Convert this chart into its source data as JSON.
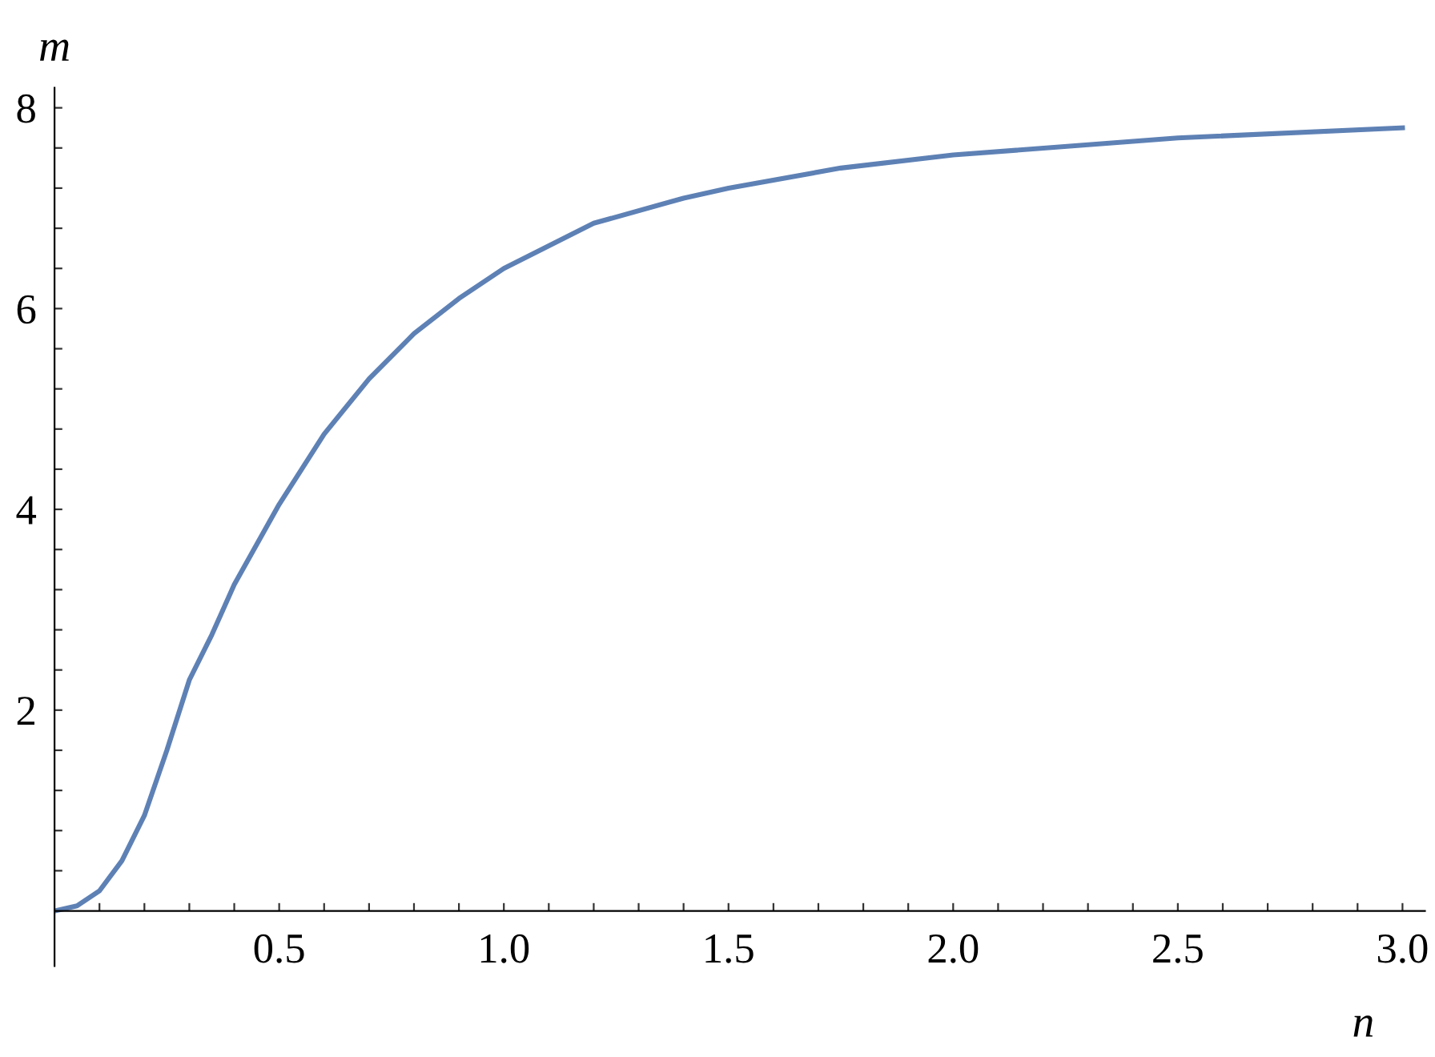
{
  "chart_data": {
    "type": "line",
    "xlabel": "n",
    "ylabel": "m",
    "x": [
      0,
      0.05,
      0.1,
      0.15,
      0.2,
      0.25,
      0.3,
      0.35,
      0.4,
      0.5,
      0.6,
      0.7,
      0.8,
      0.9,
      1.0,
      1.2,
      1.4,
      1.5,
      1.75,
      2.0,
      2.5,
      3.0
    ],
    "series": [
      {
        "color": "#5e81b5",
        "values": [
          0,
          0.05,
          0.2,
          0.5,
          0.95,
          1.6,
          2.3,
          2.75,
          3.25,
          4.05,
          4.75,
          5.3,
          5.75,
          6.1,
          6.4,
          6.85,
          7.1,
          7.2,
          7.4,
          7.53,
          7.7,
          7.8
        ]
      }
    ],
    "xlim": [
      0,
      3.05
    ],
    "ylim": [
      -0.55,
      8.2
    ],
    "xticks": [
      {
        "value": 0.1,
        "label": null
      },
      {
        "value": 0.2,
        "label": null
      },
      {
        "value": 0.3,
        "label": null
      },
      {
        "value": 0.4,
        "label": null
      },
      {
        "value": 0.5,
        "label": "0.5"
      },
      {
        "value": 0.6,
        "label": null
      },
      {
        "value": 0.7,
        "label": null
      },
      {
        "value": 0.8,
        "label": null
      },
      {
        "value": 0.9,
        "label": null
      },
      {
        "value": 1.0,
        "label": "1.0"
      },
      {
        "value": 1.1,
        "label": null
      },
      {
        "value": 1.2,
        "label": null
      },
      {
        "value": 1.3,
        "label": null
      },
      {
        "value": 1.4,
        "label": null
      },
      {
        "value": 1.5,
        "label": "1.5"
      },
      {
        "value": 1.6,
        "label": null
      },
      {
        "value": 1.7,
        "label": null
      },
      {
        "value": 1.8,
        "label": null
      },
      {
        "value": 1.9,
        "label": null
      },
      {
        "value": 2.0,
        "label": "2.0"
      },
      {
        "value": 2.1,
        "label": null
      },
      {
        "value": 2.2,
        "label": null
      },
      {
        "value": 2.3,
        "label": null
      },
      {
        "value": 2.4,
        "label": null
      },
      {
        "value": 2.5,
        "label": "2.5"
      },
      {
        "value": 2.6,
        "label": null
      },
      {
        "value": 2.7,
        "label": null
      },
      {
        "value": 2.8,
        "label": null
      },
      {
        "value": 2.9,
        "label": null
      },
      {
        "value": 3.0,
        "label": "3.0"
      }
    ],
    "yticks": [
      {
        "value": 0.4,
        "label": null
      },
      {
        "value": 0.8,
        "label": null
      },
      {
        "value": 1.2,
        "label": null
      },
      {
        "value": 1.6,
        "label": null
      },
      2,
      {
        "value": 2.4,
        "label": null
      },
      {
        "value": 2.8,
        "label": null
      },
      {
        "value": 3.2,
        "label": null
      },
      {
        "value": 3.6,
        "label": null
      },
      4,
      {
        "value": 4.4,
        "label": null
      },
      {
        "value": 4.8,
        "label": null
      },
      {
        "value": 5.2,
        "label": null
      },
      {
        "value": 5.6,
        "label": null
      },
      6,
      {
        "value": 6.4,
        "label": null
      },
      {
        "value": 6.8,
        "label": null
      },
      {
        "value": 7.2,
        "label": null
      },
      {
        "value": 7.6,
        "label": null
      },
      8
    ],
    "grid": false,
    "legend": false,
    "marker": "none",
    "line_style": "solid"
  }
}
